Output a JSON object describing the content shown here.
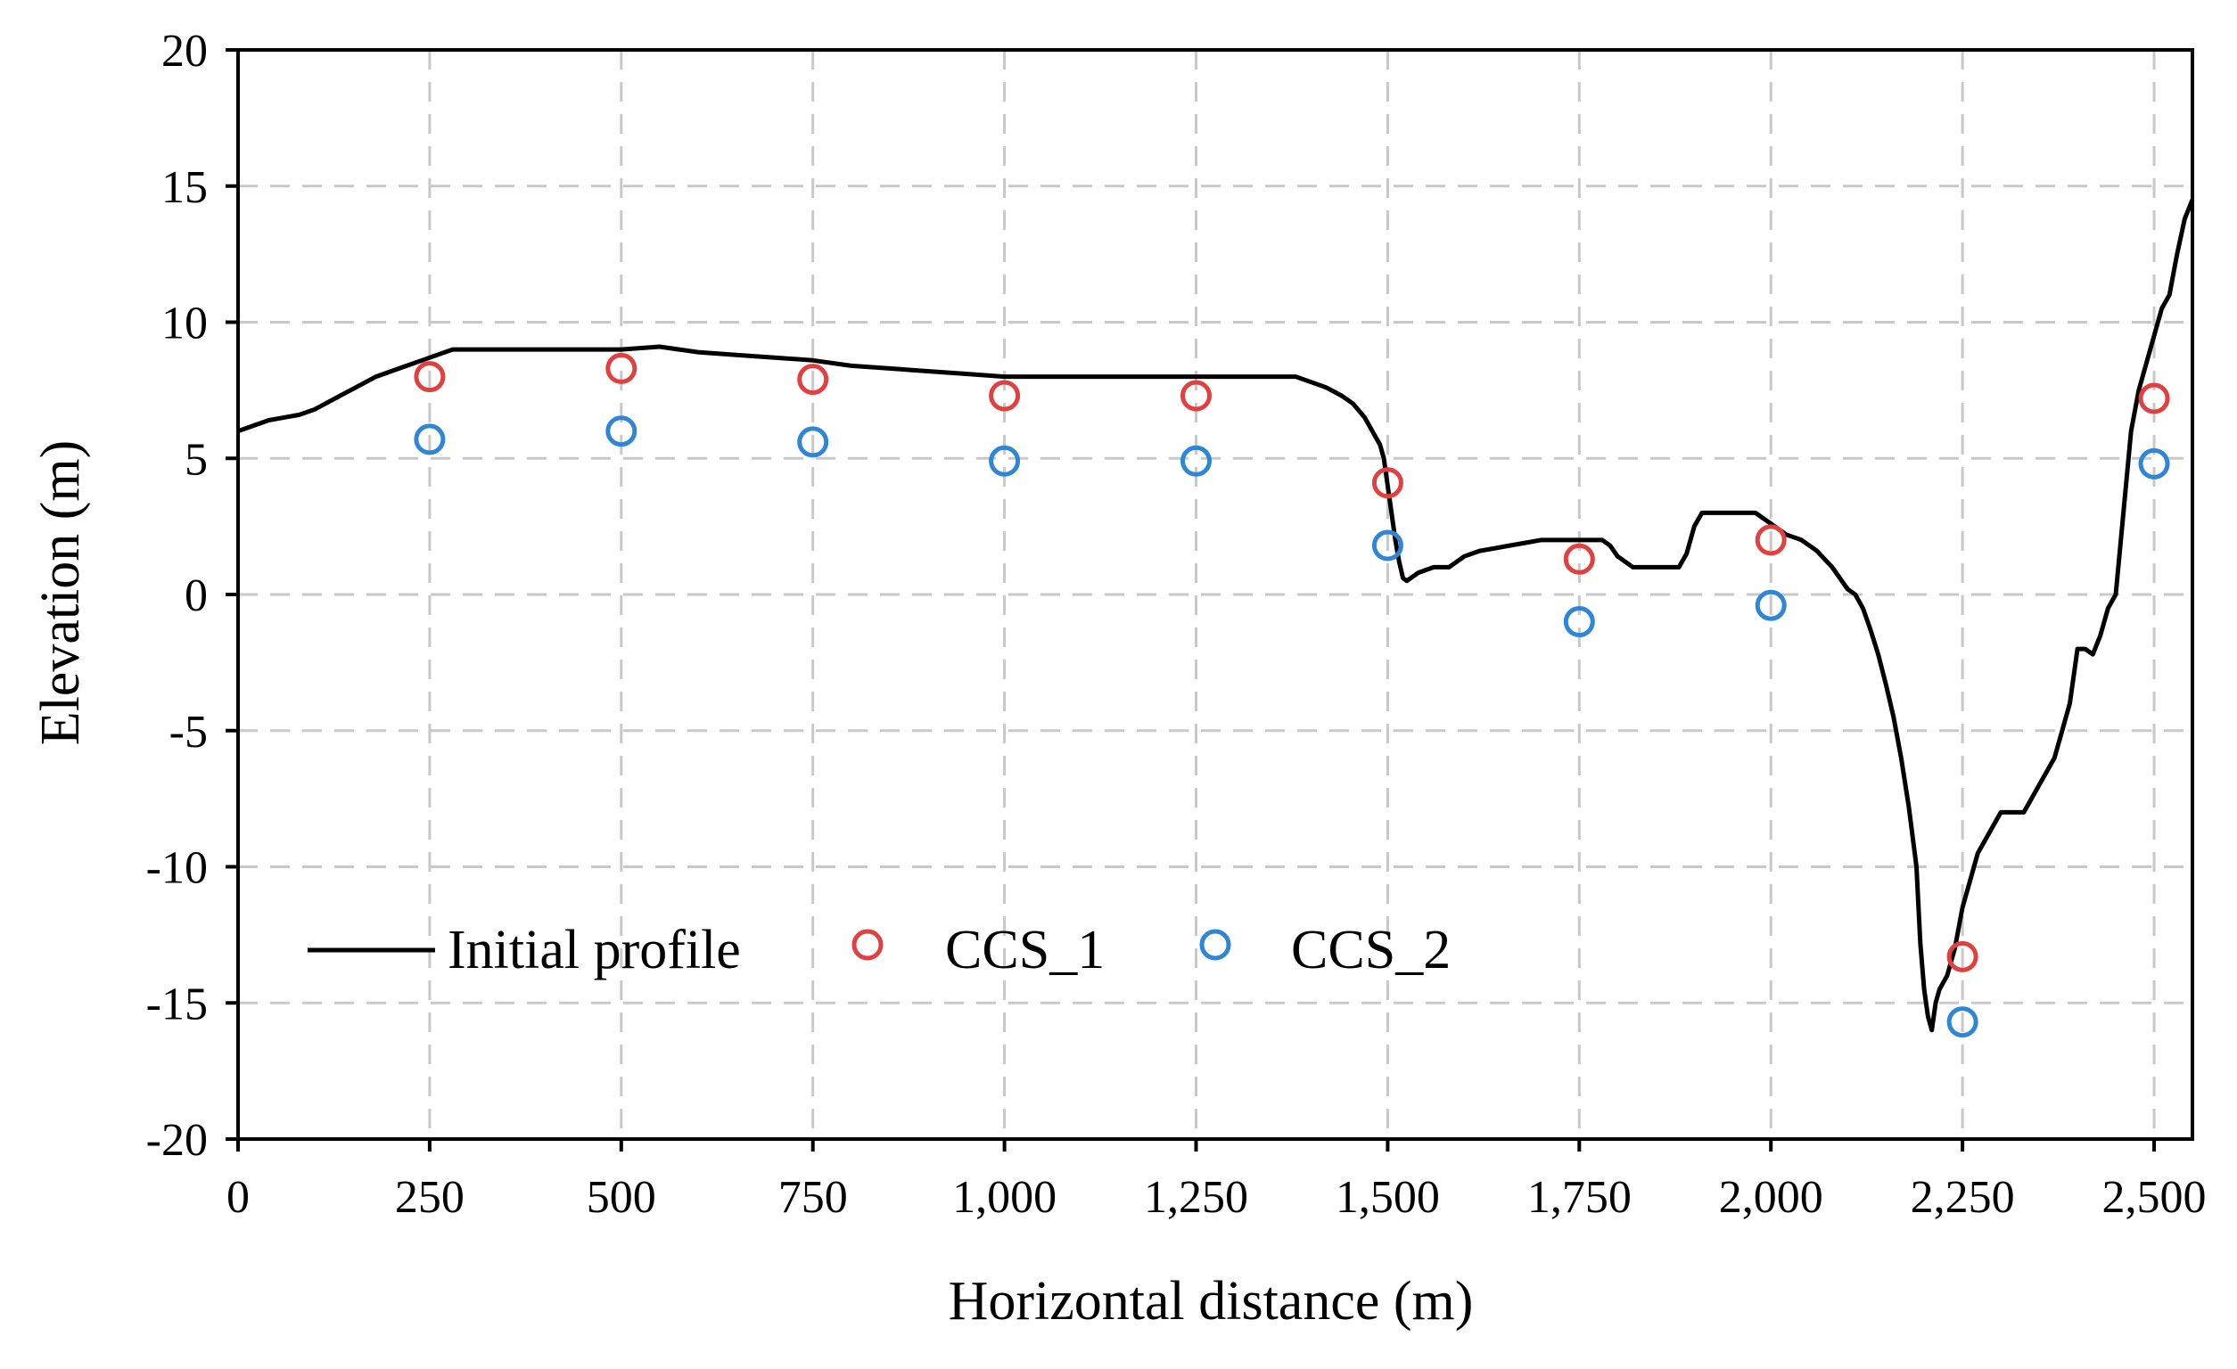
{
  "chart_data": {
    "type": "scatter",
    "title": "",
    "xlabel": "Horizontal distance (m)",
    "ylabel": "Elevation (m)",
    "xlim": [
      0,
      2550
    ],
    "ylim": [
      -20,
      20
    ],
    "grid": true,
    "legend_position": "lower-left",
    "x_ticks": [
      0,
      250,
      500,
      750,
      1000,
      1250,
      1500,
      1750,
      2000,
      2250,
      2500
    ],
    "x_tick_labels": [
      "0",
      "250",
      "500",
      "750",
      "1,000",
      "1,250",
      "1,500",
      "1,750",
      "2,000",
      "2,250",
      "2,500"
    ],
    "y_ticks": [
      -20,
      -15,
      -10,
      -5,
      0,
      5,
      10,
      15,
      20
    ],
    "y_tick_labels": [
      "-20",
      "-15",
      "-10",
      "-5",
      "0",
      "5",
      "10",
      "15",
      "20"
    ],
    "series": [
      {
        "name": "Initial profile",
        "kind": "line",
        "color": "#000000",
        "x": [
          0,
          20,
          40,
          60,
          80,
          100,
          120,
          140,
          160,
          180,
          200,
          220,
          240,
          260,
          280,
          300,
          350,
          400,
          450,
          500,
          550,
          600,
          650,
          700,
          750,
          800,
          850,
          900,
          950,
          1000,
          1050,
          1100,
          1150,
          1200,
          1250,
          1300,
          1350,
          1380,
          1400,
          1420,
          1440,
          1455,
          1470,
          1480,
          1490,
          1495,
          1500,
          1505,
          1510,
          1515,
          1520,
          1525,
          1530,
          1540,
          1550,
          1560,
          1570,
          1580,
          1590,
          1600,
          1620,
          1640,
          1660,
          1680,
          1700,
          1720,
          1740,
          1760,
          1770,
          1780,
          1790,
          1800,
          1820,
          1840,
          1860,
          1880,
          1890,
          1900,
          1910,
          1920,
          1940,
          1960,
          1980,
          2000,
          2020,
          2030,
          2040,
          2050,
          2060,
          2070,
          2080,
          2090,
          2100,
          2110,
          2120,
          2130,
          2140,
          2150,
          2160,
          2170,
          2180,
          2190,
          2195,
          2200,
          2205,
          2210,
          2215,
          2220,
          2230,
          2240,
          2250,
          2260,
          2270,
          2280,
          2290,
          2300,
          2310,
          2320,
          2330,
          2340,
          2350,
          2360,
          2370,
          2380,
          2390,
          2400,
          2410,
          2420,
          2430,
          2440,
          2450,
          2460,
          2470,
          2480,
          2490,
          2500,
          2510,
          2520,
          2530,
          2540,
          2550
        ],
        "y": [
          6.0,
          6.2,
          6.4,
          6.5,
          6.6,
          6.8,
          7.1,
          7.4,
          7.7,
          8.0,
          8.2,
          8.4,
          8.6,
          8.8,
          9.0,
          9.0,
          9.0,
          9.0,
          9.0,
          9.0,
          9.1,
          8.9,
          8.8,
          8.7,
          8.6,
          8.4,
          8.3,
          8.2,
          8.1,
          8.0,
          8.0,
          8.0,
          8.0,
          8.0,
          8.0,
          8.0,
          8.0,
          8.0,
          7.8,
          7.6,
          7.3,
          7.0,
          6.5,
          6.0,
          5.5,
          5.0,
          4.0,
          3.0,
          2.0,
          1.2,
          0.6,
          0.5,
          0.6,
          0.8,
          0.9,
          1.0,
          1.0,
          1.0,
          1.2,
          1.4,
          1.6,
          1.7,
          1.8,
          1.9,
          2.0,
          2.0,
          2.0,
          2.0,
          2.0,
          2.0,
          1.8,
          1.4,
          1.0,
          1.0,
          1.0,
          1.0,
          1.5,
          2.5,
          3.0,
          3.0,
          3.0,
          3.0,
          3.0,
          2.6,
          2.2,
          2.1,
          2.0,
          1.8,
          1.6,
          1.3,
          1.0,
          0.6,
          0.2,
          0.0,
          -0.5,
          -1.3,
          -2.2,
          -3.3,
          -4.5,
          -6.0,
          -7.8,
          -10.0,
          -12.8,
          -14.5,
          -15.5,
          -16.0,
          -15.0,
          -14.5,
          -14.0,
          -13.0,
          -11.5,
          -10.5,
          -9.5,
          -9.0,
          -8.5,
          -8.0,
          -8.0,
          -8.0,
          -8.0,
          -7.5,
          -7.0,
          -6.5,
          -6.0,
          -5.0,
          -4.0,
          -2.0,
          -2.0,
          -2.2,
          -1.5,
          -0.5,
          0.0,
          3.0,
          6.0,
          7.5,
          8.5,
          9.5,
          10.5,
          11.0,
          12.5,
          13.8,
          14.5
        ]
      },
      {
        "name": "CCS_1",
        "kind": "scatter",
        "marker": "open-circle",
        "color": "#e04040",
        "x": [
          250,
          500,
          750,
          1000,
          1250,
          1500,
          1750,
          2000,
          2250,
          2500
        ],
        "y": [
          8.0,
          8.3,
          7.9,
          7.3,
          7.3,
          4.1,
          1.3,
          2.0,
          -13.3,
          7.2
        ]
      },
      {
        "name": "CCS_2",
        "kind": "scatter",
        "marker": "open-circle",
        "color": "#2e86d4",
        "x": [
          250,
          500,
          750,
          1000,
          1250,
          1500,
          1750,
          2000,
          2250,
          2500
        ],
        "y": [
          5.7,
          6.0,
          5.6,
          4.9,
          4.9,
          1.8,
          -1.0,
          -0.4,
          -15.7,
          4.8
        ]
      }
    ]
  }
}
